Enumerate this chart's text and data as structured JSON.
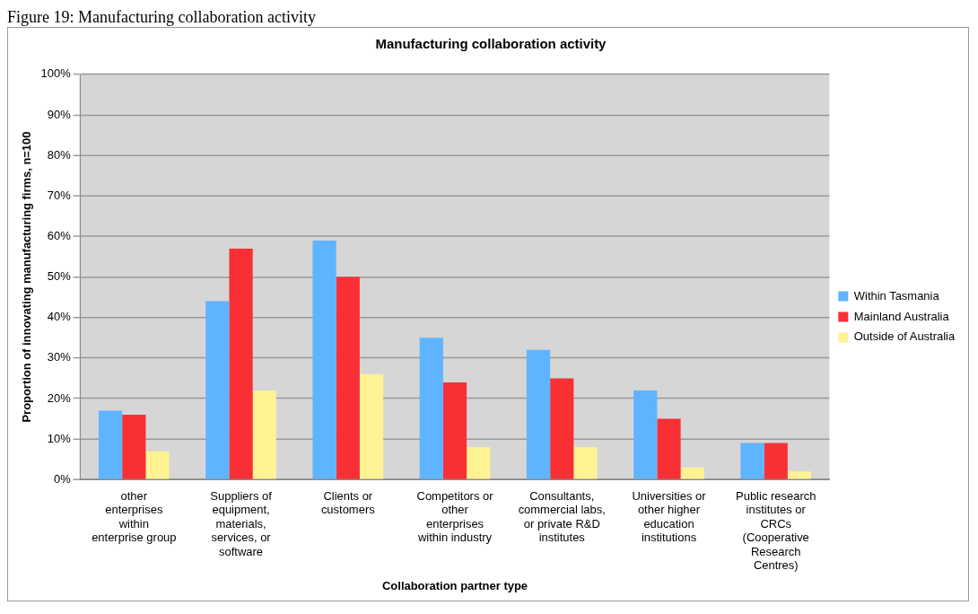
{
  "chart_data": {
    "type": "bar",
    "title": "Manufacturing collaboration activity",
    "annotations": [
      "Figure 19: Manufacturing collaboration activity"
    ],
    "xlabel": "Collaboration partner type",
    "ylabel": "Proportion of innovating manufacturing firms, n=100",
    "categories": [
      "other enterprises within enterprise group",
      "Suppliers of equipment, materials, services, or software",
      "Clients or customers",
      "Competitors or other enterprises within industry",
      "Consultants, commercial labs, or private R&D institutes",
      "Universities or other higher education institutions",
      "Public research institutes or CRCs (Cooperative Research Centres)"
    ],
    "series": [
      {
        "name": "Within Tasmania",
        "color": "#5fb4ff",
        "values": [
          17,
          44,
          59,
          35,
          32,
          22,
          9
        ]
      },
      {
        "name": "Mainland Australia",
        "color": "#f83035",
        "values": [
          16,
          57,
          50,
          24,
          25,
          15,
          9
        ]
      },
      {
        "name": "Outside of Australia",
        "color": "#fff293",
        "values": [
          7,
          22,
          26,
          8,
          8,
          3,
          2
        ]
      }
    ],
    "ylim": [
      0,
      100
    ],
    "yticks": [
      {
        "value": 0,
        "label": "0%"
      },
      {
        "value": 10,
        "label": "10%"
      },
      {
        "value": 20,
        "label": "20%"
      },
      {
        "value": 30,
        "label": "30%"
      },
      {
        "value": 40,
        "label": "40%"
      },
      {
        "value": 50,
        "label": "50%"
      },
      {
        "value": 60,
        "label": "60%"
      },
      {
        "value": 70,
        "label": "70%"
      },
      {
        "value": 80,
        "label": "80%"
      },
      {
        "value": 90,
        "label": "90%"
      },
      {
        "value": 100,
        "label": "100%"
      }
    ],
    "grid": "y",
    "legend": "right"
  }
}
